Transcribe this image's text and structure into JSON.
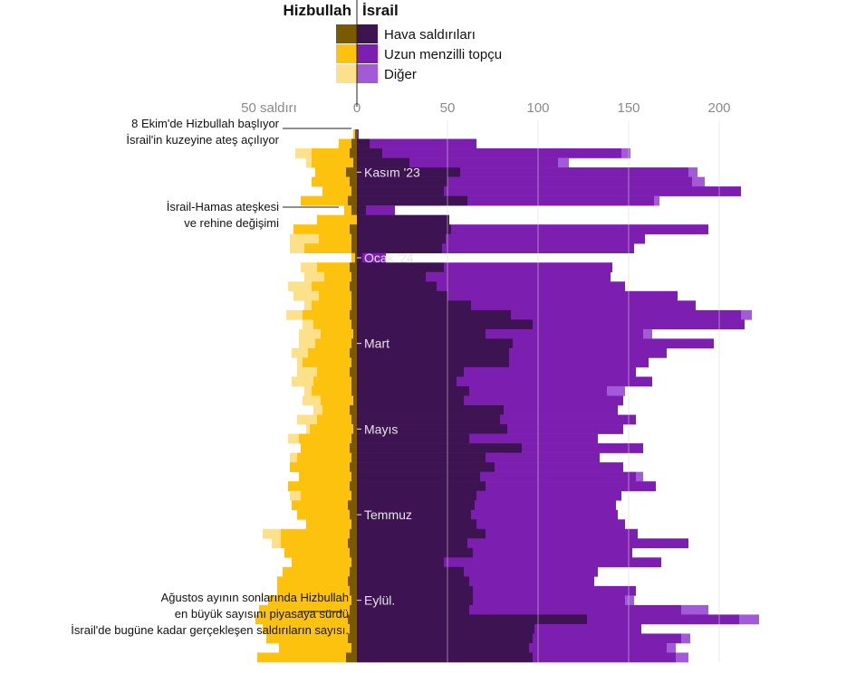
{
  "headers": {
    "left": "Hizbullah",
    "right": "İsrail"
  },
  "legend": [
    {
      "label": "Hava saldırıları",
      "left_color": "#7a5a00",
      "right_color": "#3d1451"
    },
    {
      "label": "Uzun menzilli topçu",
      "left_color": "#fcc20e",
      "right_color": "#7c1fb0"
    },
    {
      "label": "Diğer",
      "left_color": "#fde08a",
      "right_color": "#a35ad6"
    }
  ],
  "colors": {
    "hz_air": "#7a5a00",
    "hz_art": "#fcc20e",
    "hz_other": "#fde08a",
    "is_air": "#3d1451",
    "is_art": "#7c1fb0",
    "is_other": "#a35ad6",
    "gridline": "#d7d7d7"
  },
  "axis": {
    "tick_labels": [
      "50 saldırı",
      "0",
      "50",
      "100",
      "150",
      "200"
    ],
    "tick_values": [
      -50,
      0,
      50,
      100,
      150,
      200
    ]
  },
  "annotations": [
    {
      "lines": [
        "8 Ekim'de Hizbullah başlıyor",
        "İsrail'in kuzeyine ateş açılıyor"
      ],
      "week_index": 0
    },
    {
      "lines": [
        "İsrail-Hamas ateşkesi",
        "ve rehine değişimi"
      ],
      "week_index": 7
    },
    {
      "lines": [
        "Ağustos ayının sonlarında Hizbullah",
        "en büyük sayısını piyasaya sürdü",
        "İsrail'de bugüne kadar gerçekleşen saldırıların sayısı."
      ],
      "week_index": 54
    }
  ],
  "chart_data": {
    "type": "bar",
    "orientation": "horizontal-diverging",
    "x_unit": "weekly attacks",
    "xlim": [
      -100,
      220
    ],
    "month_labels": [
      {
        "label": "Kasım '23",
        "week_index": 4
      },
      {
        "label": "Ocak '24",
        "week_index": 13
      },
      {
        "label": "Mart",
        "week_index": 22
      },
      {
        "label": "Mayıs",
        "week_index": 31
      },
      {
        "label": "Temmuz",
        "week_index": 40
      },
      {
        "label": "Eylül.",
        "week_index": 49
      }
    ],
    "series_names": [
      "Hava saldırıları",
      "Uzun menzilli topçu",
      "Diğer"
    ],
    "weeks": [
      {
        "i": [
          0,
          1,
          0
        ],
        "h": [
          1,
          1,
          0
        ]
      },
      {
        "i": [
          7,
          59,
          0
        ],
        "h": [
          3,
          7,
          0
        ]
      },
      {
        "i": [
          14,
          132,
          5
        ],
        "h": [
          4,
          21,
          9
        ]
      },
      {
        "i": [
          29,
          82,
          6
        ],
        "h": [
          2,
          23,
          3
        ]
      },
      {
        "i": [
          57,
          126,
          5
        ],
        "h": [
          6,
          17,
          0
        ]
      },
      {
        "i": [
          50,
          135,
          7
        ],
        "h": [
          4,
          21,
          0
        ]
      },
      {
        "i": [
          48,
          164,
          0
        ],
        "h": [
          3,
          16,
          0
        ]
      },
      {
        "i": [
          61,
          103,
          3
        ],
        "h": [
          5,
          26,
          0
        ]
      },
      {
        "i": [
          5,
          16,
          0
        ],
        "h": [
          3,
          4,
          0
        ]
      },
      {
        "i": [
          51,
          0,
          0
        ],
        "h": [
          0,
          22,
          0
        ]
      },
      {
        "i": [
          52,
          142,
          0
        ],
        "h": [
          4,
          31,
          0
        ]
      },
      {
        "i": [
          49,
          110,
          0
        ],
        "h": [
          3,
          18,
          16
        ]
      },
      {
        "i": [
          47,
          106,
          0
        ],
        "h": [
          3,
          26,
          8
        ]
      },
      {
        "i": [
          3,
          13,
          0
        ],
        "h": [
          1,
          2,
          0
        ]
      },
      {
        "i": [
          48,
          93,
          0
        ],
        "h": [
          4,
          18,
          9
        ]
      },
      {
        "i": [
          38,
          102,
          0
        ],
        "h": [
          3,
          15,
          11
        ]
      },
      {
        "i": [
          44,
          104,
          0
        ],
        "h": [
          4,
          21,
          13
        ]
      },
      {
        "i": [
          50,
          127,
          0
        ],
        "h": [
          3,
          18,
          14
        ]
      },
      {
        "i": [
          63,
          124,
          0
        ],
        "h": [
          3,
          22,
          4
        ]
      },
      {
        "i": [
          85,
          127,
          6
        ],
        "h": [
          4,
          26,
          9
        ]
      },
      {
        "i": [
          97,
          117,
          0
        ],
        "h": [
          3,
          21,
          6
        ]
      },
      {
        "i": [
          71,
          87,
          5
        ],
        "h": [
          2,
          18,
          12
        ]
      },
      {
        "i": [
          86,
          111,
          0
        ],
        "h": [
          3,
          20,
          9
        ]
      },
      {
        "i": [
          84,
          87,
          0
        ],
        "h": [
          4,
          23,
          9
        ]
      },
      {
        "i": [
          84,
          77,
          0
        ],
        "h": [
          3,
          27,
          3
        ]
      },
      {
        "i": [
          59,
          95,
          0
        ],
        "h": [
          4,
          18,
          11
        ]
      },
      {
        "i": [
          55,
          108,
          0
        ],
        "h": [
          3,
          21,
          12
        ]
      },
      {
        "i": [
          62,
          76,
          10
        ],
        "h": [
          3,
          22,
          4
        ]
      },
      {
        "i": [
          59,
          88,
          0
        ],
        "h": [
          2,
          18,
          10
        ]
      },
      {
        "i": [
          81,
          63,
          0
        ],
        "h": [
          4,
          15,
          5
        ]
      },
      {
        "i": [
          79,
          75,
          0
        ],
        "h": [
          3,
          19,
          11
        ]
      },
      {
        "i": [
          83,
          64,
          0
        ],
        "h": [
          2,
          24,
          2
        ]
      },
      {
        "i": [
          62,
          71,
          0
        ],
        "h": [
          3,
          29,
          6
        ]
      },
      {
        "i": [
          91,
          67,
          0
        ],
        "h": [
          4,
          27,
          0
        ]
      },
      {
        "i": [
          71,
          63,
          0
        ],
        "h": [
          3,
          30,
          4
        ]
      },
      {
        "i": [
          76,
          71,
          0
        ],
        "h": [
          4,
          33,
          0
        ]
      },
      {
        "i": [
          68,
          86,
          4
        ],
        "h": [
          3,
          29,
          0
        ]
      },
      {
        "i": [
          71,
          94,
          0
        ],
        "h": [
          4,
          34,
          0
        ]
      },
      {
        "i": [
          66,
          80,
          0
        ],
        "h": [
          3,
          28,
          6
        ]
      },
      {
        "i": [
          65,
          78,
          0
        ],
        "h": [
          5,
          31,
          0
        ]
      },
      {
        "i": [
          63,
          81,
          0
        ],
        "h": [
          4,
          29,
          0
        ]
      },
      {
        "i": [
          66,
          82,
          0
        ],
        "h": [
          3,
          25,
          0
        ]
      },
      {
        "i": [
          71,
          84,
          0
        ],
        "h": [
          4,
          38,
          10
        ]
      },
      {
        "i": [
          61,
          122,
          0
        ],
        "h": [
          5,
          37,
          5
        ]
      },
      {
        "i": [
          64,
          88,
          0
        ],
        "h": [
          4,
          36,
          0
        ]
      },
      {
        "i": [
          48,
          120,
          0
        ],
        "h": [
          3,
          33,
          0
        ]
      },
      {
        "i": [
          59,
          74,
          0
        ],
        "h": [
          4,
          37,
          0
        ]
      },
      {
        "i": [
          62,
          69,
          0
        ],
        "h": [
          5,
          39,
          0
        ]
      },
      {
        "i": [
          64,
          90,
          0
        ],
        "h": [
          4,
          40,
          0
        ]
      },
      {
        "i": [
          64,
          84,
          5
        ],
        "h": [
          3,
          46,
          0
        ]
      },
      {
        "i": [
          62,
          117,
          15
        ],
        "h": [
          4,
          50,
          0
        ]
      },
      {
        "i": [
          127,
          84,
          11
        ],
        "h": [
          5,
          51,
          0
        ]
      },
      {
        "i": [
          98,
          59,
          0
        ],
        "h": [
          4,
          48,
          0
        ]
      },
      {
        "i": [
          97,
          82,
          5
        ],
        "h": [
          5,
          45,
          0
        ]
      },
      {
        "i": [
          95,
          76,
          5
        ],
        "h": [
          3,
          40,
          0
        ]
      },
      {
        "i": [
          97,
          79,
          7
        ],
        "h": [
          6,
          49,
          0
        ]
      }
    ]
  }
}
